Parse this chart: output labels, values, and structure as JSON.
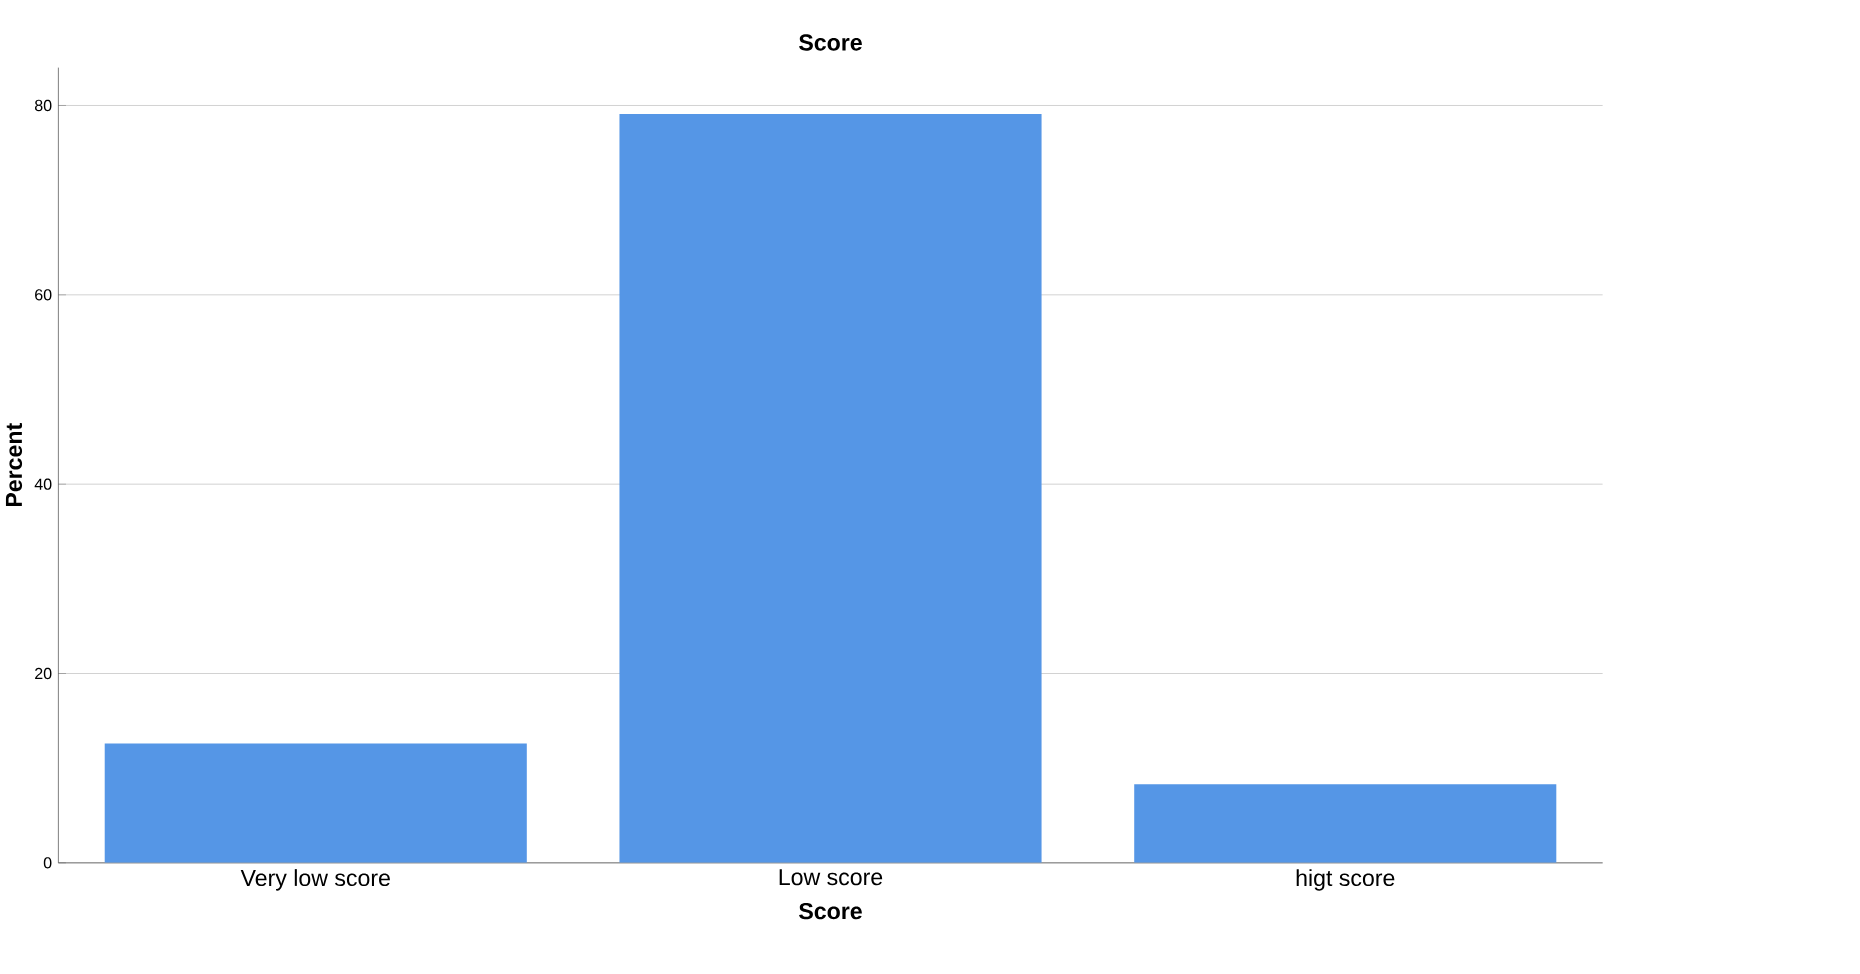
{
  "chart_data": {
    "type": "bar",
    "title": "Score",
    "xlabel": "Score",
    "ylabel": "Percent",
    "categories": [
      "Very low score",
      "Low score",
      "higt score"
    ],
    "values": [
      12.6,
      79.1,
      8.3
    ],
    "color": "#5596e6",
    "ylim": [
      0,
      84
    ],
    "yticks": [
      0,
      20,
      40,
      60,
      80
    ],
    "grid": "y"
  }
}
